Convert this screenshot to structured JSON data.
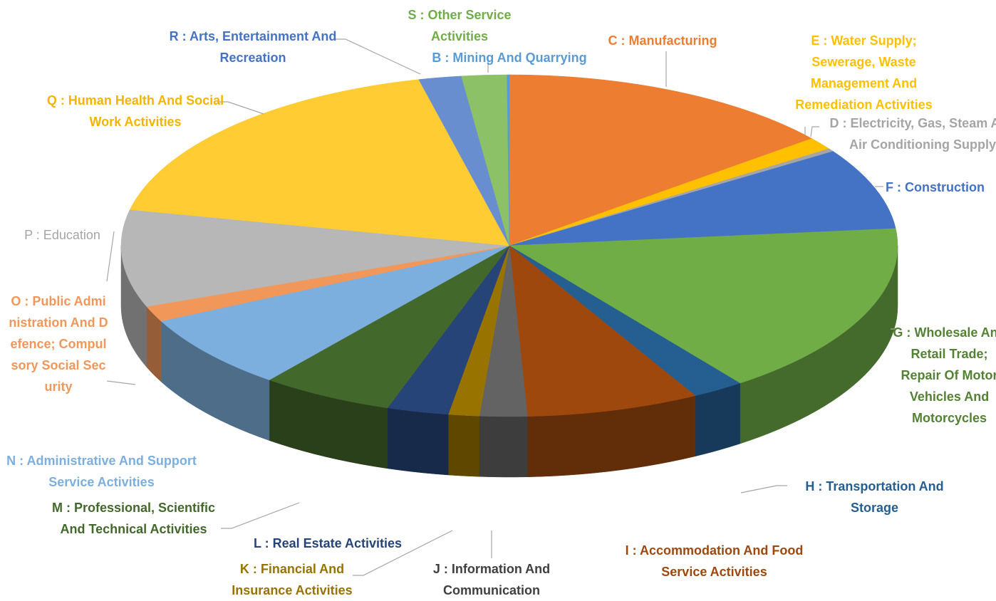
{
  "chart_data": {
    "type": "pie3d",
    "categories": [
      "C : Manufacturing",
      "E : Water Supply; Sewerage, Waste Management And Remediation Activities",
      "D : Electricity, Gas, Steam And Air Conditioning Supply",
      "F : Construction",
      "G : Wholesale And Retail Trade; Repair Of Motor Vehicles And Motorcycles",
      "H : Transportation And Storage",
      "I : Accommodation And Food Service Activities",
      "J : Information And Communication",
      "K : Financial And Insurance Activities",
      "L : Real Estate Activities",
      "M : Professional, Scientific And Technical Activities",
      "N : Administrative And Support Service Activities",
      "O : Public Administration And Defence; Compulsory Social Security",
      "P : Education",
      "Q : Human Health And Social Work Activities",
      "R : Arts, Entertainment And Recreation",
      "S : Other Service Activities",
      "B : Mining And Quarrying"
    ],
    "values": [
      14.4,
      1.2,
      0.3,
      7.8,
      16.7,
      2.2,
      7.3,
      2.0,
      1.3,
      2.6,
      5.6,
      7.2,
      1.5,
      9.3,
      18.1,
      1.8,
      1.9,
      0.1
    ],
    "colors": [
      "#ed7d31",
      "#ffc000",
      "#a5a5a5",
      "#4472c4",
      "#70ad47",
      "#255e91",
      "#9e480e",
      "#636363",
      "#997300",
      "#264478",
      "#43682b",
      "#7cafdd",
      "#f1975a",
      "#b7b7b7",
      "#ffcd33",
      "#698ed0",
      "#8cc168",
      "#5b9bd5"
    ]
  }
}
